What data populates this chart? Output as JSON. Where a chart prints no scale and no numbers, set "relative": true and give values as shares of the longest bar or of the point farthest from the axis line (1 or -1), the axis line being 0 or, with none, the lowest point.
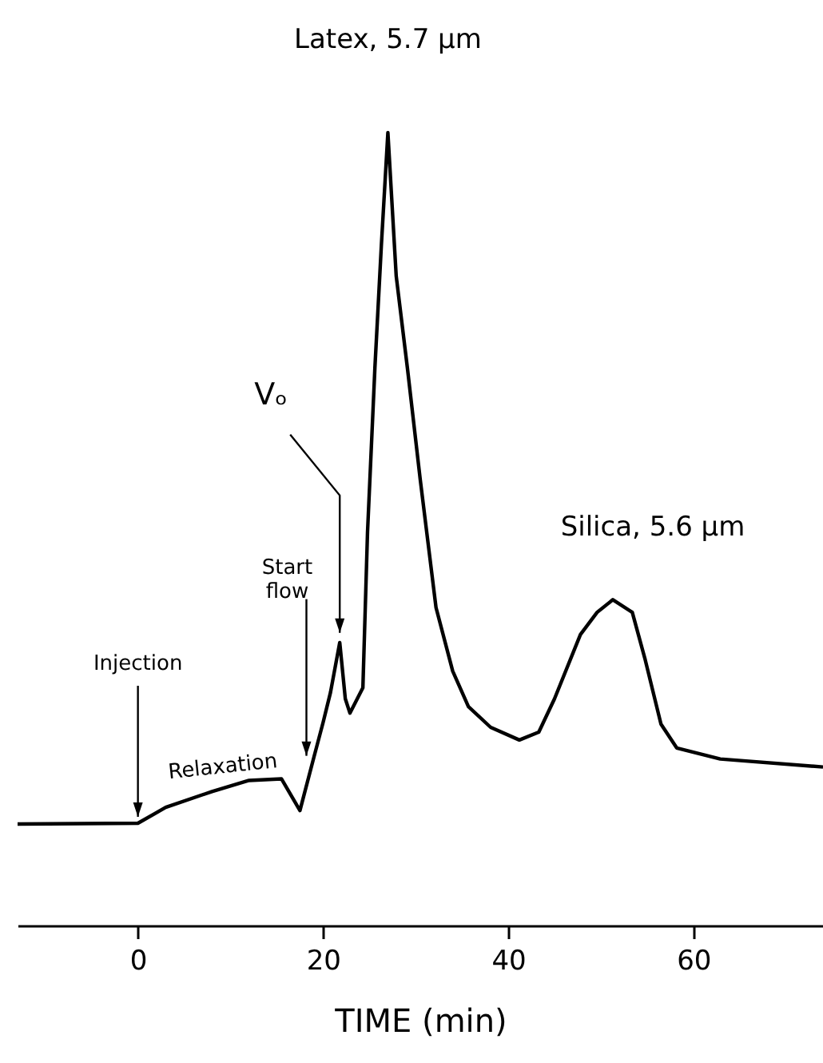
{
  "chart_data": {
    "type": "line",
    "relative": true,
    "xlabel": "TIME (min)",
    "xlim": [
      -13,
      74
    ],
    "xticks": [
      0,
      20,
      40,
      60
    ],
    "x": [
      -13,
      0,
      3,
      8,
      12,
      15.5,
      17.5,
      19,
      20,
      20.8,
      21.8,
      22.4,
      22.9,
      24.3,
      24.8,
      25.6,
      26.3,
      27,
      27.9,
      29.1,
      30.5,
      32.2,
      34,
      35.7,
      38.1,
      41.2,
      43.3,
      45,
      47.8,
      49.6,
      51.3,
      53.4,
      54.8,
      56.5,
      58.2,
      62.9,
      74
    ],
    "series": [
      {
        "color": "#000000",
        "values": [
          0.128,
          0.129,
          0.149,
          0.169,
          0.183,
          0.185,
          0.145,
          0.212,
          0.256,
          0.294,
          0.357,
          0.286,
          0.268,
          0.3,
          0.496,
          0.704,
          0.859,
          1,
          0.819,
          0.704,
          0.562,
          0.401,
          0.321,
          0.276,
          0.25,
          0.234,
          0.244,
          0.286,
          0.367,
          0.395,
          0.411,
          0.395,
          0.335,
          0.254,
          0.224,
          0.21,
          0.2
        ]
      }
    ],
    "annotations": [
      {
        "text": "Latex, 5.7 μm",
        "x": 27,
        "y": 1
      },
      {
        "text": "Silica, 5.6 μm",
        "x": 51.3,
        "y": 0.411
      },
      {
        "text": "Vₒ",
        "x": 21.8,
        "y": 0.357
      },
      {
        "text": "Start flow",
        "x": 18.2,
        "y": 0.206
      },
      {
        "text": "Injection",
        "x": 0,
        "y": 0.129
      },
      {
        "text": "Relaxation",
        "x": 9,
        "y": 0.18
      }
    ]
  }
}
